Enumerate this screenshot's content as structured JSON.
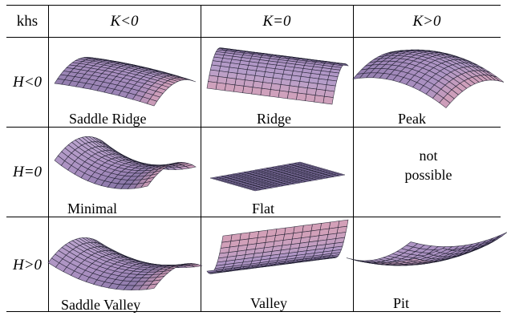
{
  "table": {
    "corner": "khs",
    "columns": [
      "K<0",
      "K=0",
      "K>0"
    ],
    "rows": [
      "H<0",
      "H=0",
      "H>0"
    ],
    "cells": [
      [
        "Saddle Ridge",
        "Ridge",
        "Peak"
      ],
      [
        "Minimal",
        "Flat",
        "not possible"
      ],
      [
        "Saddle Valley",
        "Valley",
        "Pit"
      ]
    ],
    "not_possible_lines": [
      "not",
      "possible"
    ]
  },
  "colors": {
    "surface_light": "#cdb9dc",
    "surface_mid": "#a98fc0",
    "surface_dark": "#5e5685",
    "surface_pink": "#d3a0b8",
    "mesh": "#1a1a2a"
  }
}
